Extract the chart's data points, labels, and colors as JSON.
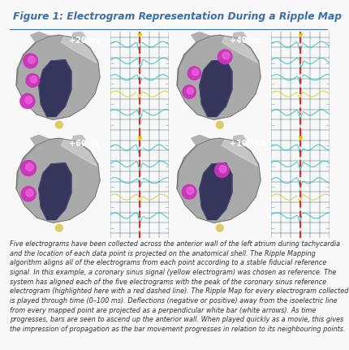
{
  "title": "Figure 1: Electrogram Representation During a Ripple Map",
  "title_color": "#3a6fa8",
  "title_fontsize": 8.8,
  "background_color": "#f8f8f8",
  "caption": "Five electrograms have been collected across the anterior wall of the left atrium during tachycardia and the location of each data point is projected on the anatomical shell. The Ripple Mapping algorithm aligns all of the electrograms from each point according to a stable fiducial reference signal. In this example, a coronary sinus signal (yellow electrogram) was chosen as reference. The system has aligned each of the five electrograms with the peak of the coronary sinus reference electrogram (highlighted here with a red dashed line). The Ripple Map for every electrogram collected is played through time (0–100 ms). Deflections (negative or positive) away from the isoelectric line from every mapped point are projected as a perpendicular white bar (white arrows). As time progresses, bars are seen to ascend up the anterior wall. When played quickly as a movie, this gives the impression of propagation as the bar movement progresses in relation to its neighbouring points.",
  "caption_fontsize": 5.85,
  "caption_color": "#333333",
  "title_line_color": "#3a6fa8",
  "panel_labels": [
    "+20ms",
    "+40ms",
    "+60ms",
    "+100ms"
  ],
  "panel_label_fontsize": 7.0,
  "figure_width": 4.0,
  "figure_height": 4.0
}
